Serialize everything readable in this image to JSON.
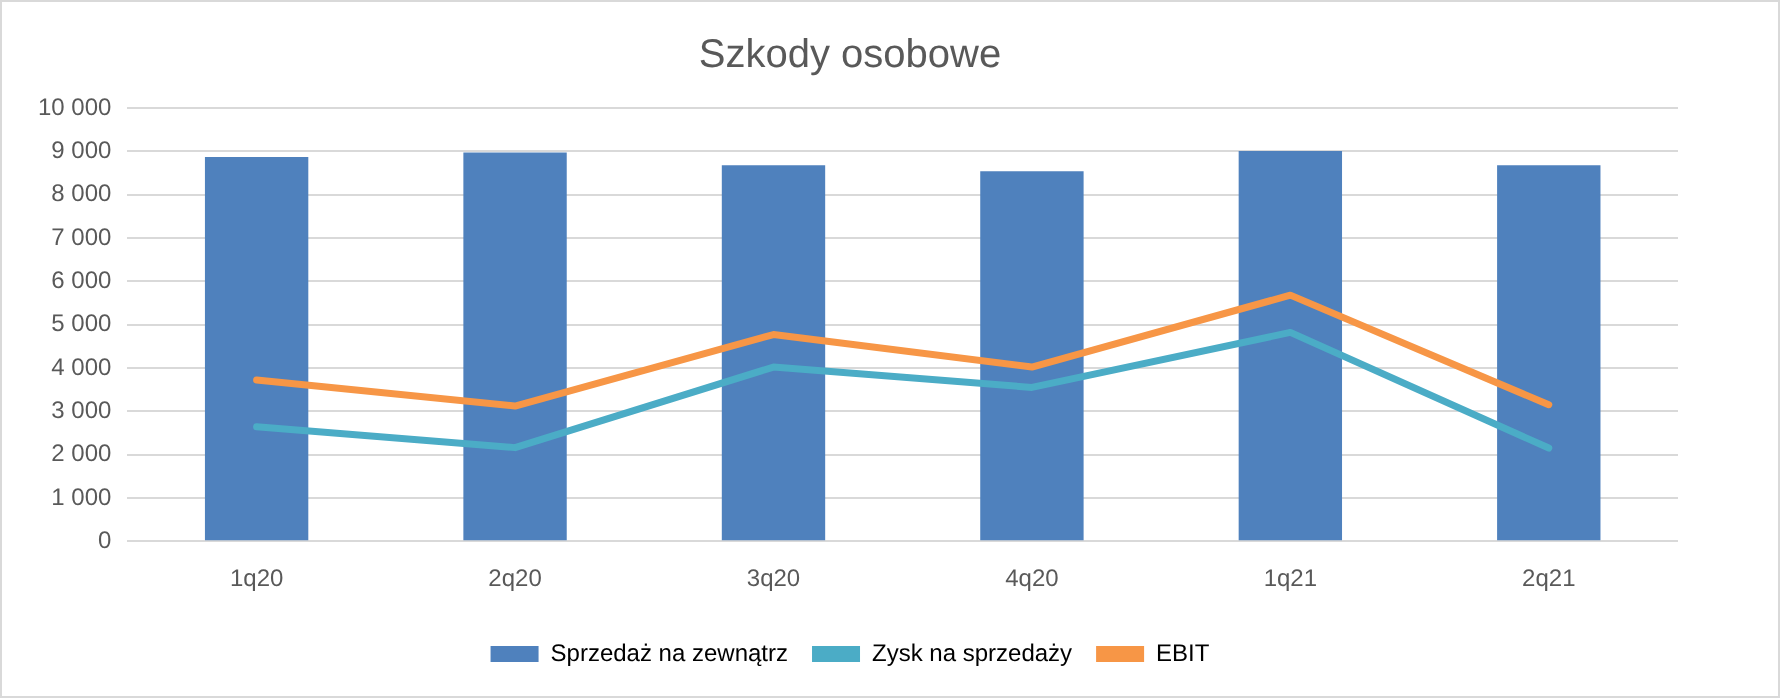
{
  "chart_data": {
    "type": "bar",
    "title": "Szkody osobowe",
    "categories": [
      "1q20",
      "2q20",
      "3q20",
      "4q20",
      "1q21",
      "2q21"
    ],
    "series": [
      {
        "name": "Sprzedaż na zewnątrz",
        "color": "#4f81bd",
        "values": [
          8870,
          8970,
          8680,
          8540,
          9010,
          8680
        ]
      },
      {
        "name": "Zysk na sprzedaży",
        "type": "line",
        "color": "#4bacc6",
        "values": [
          2640,
          2160,
          4020,
          3550,
          4820,
          2150
        ]
      },
      {
        "name": "EBIT",
        "type": "line",
        "color": "#f79646",
        "values": [
          3720,
          3120,
          4770,
          4020,
          5680,
          3150
        ]
      }
    ],
    "ylim": [
      0,
      10000
    ],
    "yticks": [
      {
        "value": 0,
        "label": "0"
      },
      {
        "value": 1000,
        "label": "1 000"
      },
      {
        "value": 2000,
        "label": "2 000"
      },
      {
        "value": 3000,
        "label": "3 000"
      },
      {
        "value": 4000,
        "label": "4 000"
      },
      {
        "value": 5000,
        "label": "5 000"
      },
      {
        "value": 6000,
        "label": "6 000"
      },
      {
        "value": 7000,
        "label": "7 000"
      },
      {
        "value": 8000,
        "label": "8 000"
      },
      {
        "value": 9000,
        "label": "9 000"
      },
      {
        "value": 10000,
        "label": "10 000"
      }
    ],
    "grid": "y",
    "legend": "bottom",
    "marker": "none",
    "line_style": "solid"
  }
}
